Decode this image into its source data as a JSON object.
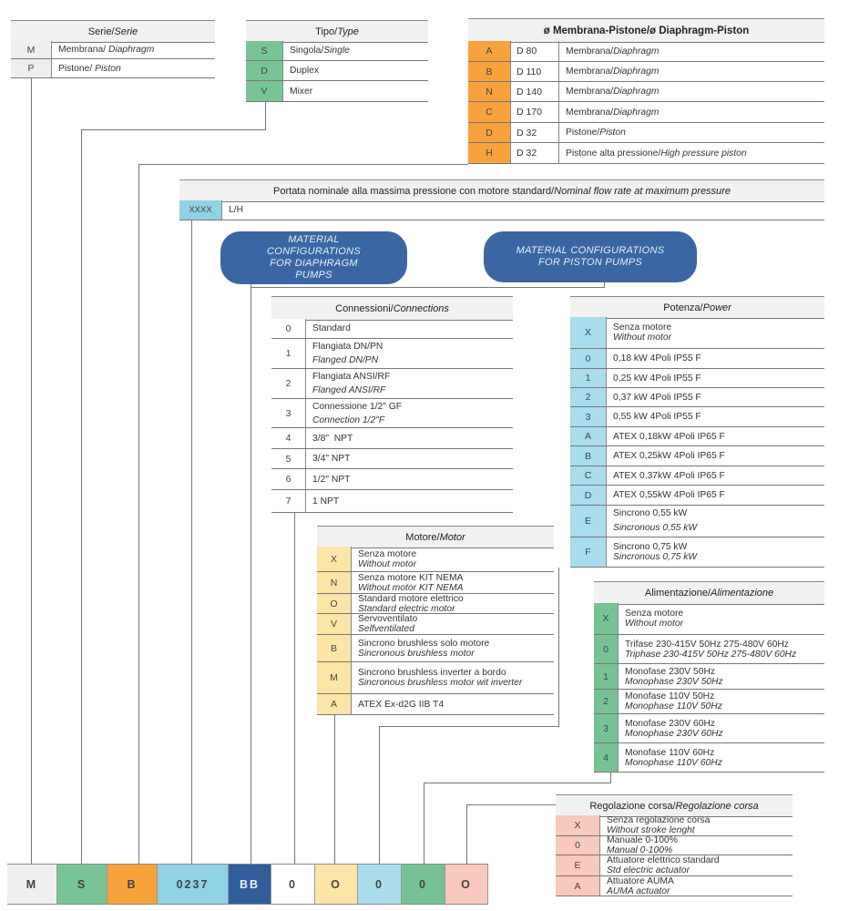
{
  "colors": {
    "header_bg": "#f1f1f1",
    "serie": "#efefef",
    "tipo": "#78c497",
    "diametro": "#f7a23b",
    "portata": "#8fd2e6",
    "config": "#2f5e9b",
    "connessioni": "#ffffff",
    "motore": "#fde5a8",
    "potenza": "#a9dcec",
    "alimentazione": "#76c294",
    "regolazione": "#f8c9bc"
  },
  "tables": {
    "serie": {
      "title": "Serie/",
      "title_en": "Serie",
      "rows": [
        {
          "code": "M",
          "text": "Membrana/ ",
          "en": "Diaphragm"
        },
        {
          "code": "P",
          "text": "Pistone/ ",
          "en": "Piston"
        }
      ]
    },
    "tipo": {
      "title": "Tipo/",
      "title_en": "Type",
      "rows": [
        {
          "code": "S",
          "text": "Singola/",
          "en": "Single"
        },
        {
          "code": "D",
          "text": "Duplex"
        },
        {
          "code": "V",
          "text": "Mixer"
        }
      ]
    },
    "diametro": {
      "title": "ø Membrana-Pistone/ø Diaphragm-Piston",
      "rows": [
        {
          "code": "A",
          "dim": "D 80",
          "text": "Membrana/",
          "en": "Diaphragm"
        },
        {
          "code": "B",
          "dim": "D 110",
          "text": "Membrana/",
          "en": "Diaphragm"
        },
        {
          "code": "N",
          "dim": "D 140",
          "text": "Membrana/",
          "en": "Diaphragm"
        },
        {
          "code": "C",
          "dim": "D 170",
          "text": "Membrana/",
          "en": "Diaphragm"
        },
        {
          "code": "D",
          "dim": "D 32",
          "text": "Pistone/",
          "en": "Piston"
        },
        {
          "code": "H",
          "dim": "D 32",
          "text": "Pistone alta pressione/",
          "en": "High pressure piston"
        }
      ]
    },
    "portata": {
      "title": "Portata nominale alla massima pressione con motore standard/ ",
      "title_en": "Nominal flow rate at maximum pressure",
      "rows": [
        {
          "code": "XXXX",
          "text": "L/H"
        }
      ]
    },
    "connessioni": {
      "title": "Connessioni/",
      "title_en": "Connections",
      "rows": [
        {
          "code": "0",
          "text": "Standard"
        },
        {
          "code": "1",
          "text": "Flangiata DN/PN",
          "en": "Flanged DN/PN"
        },
        {
          "code": "2",
          "text": "Flangiata ANSI/RF",
          "en": "Flanged ANSI/RF"
        },
        {
          "code": "3",
          "text": "Connessione 1/2\" GF",
          "en": "Connection 1/2\"F"
        },
        {
          "code": "4",
          "text": "3/8\"  NPT"
        },
        {
          "code": "5",
          "text": "3/4\" NPT"
        },
        {
          "code": "6",
          "text": "1/2\" NPT"
        },
        {
          "code": "7",
          "text": "1 NPT"
        }
      ]
    },
    "motore": {
      "title": "Motore/",
      "title_en": "Motor",
      "rows": [
        {
          "code": "X",
          "text": "Senza motore",
          "en": "Without motor"
        },
        {
          "code": "N",
          "text": "Senza motore KIT NEMA",
          "en": "Without motor KIT NEMA"
        },
        {
          "code": "O",
          "text": "Standard motore elettrico",
          "en": "Standard electric motor"
        },
        {
          "code": "V",
          "text": "Servoventilato",
          "en": "Selfventilated"
        },
        {
          "code": "B",
          "text": "Sincrono brushless solo motore",
          "en": "Sincronous brushless motor"
        },
        {
          "code": "M",
          "text": "Sincrono brushless inverter a bordo",
          "en": "Sincronous brushless motor wit inverter"
        },
        {
          "code": "A",
          "text": "ATEX Ex-d2G IIB T4"
        }
      ]
    },
    "potenza": {
      "title": "Potenza/",
      "title_en": "Power",
      "rows": [
        {
          "code": "X",
          "text": "Senza motore",
          "en": "Without motor"
        },
        {
          "code": "0",
          "text": "0,18 kW 4Poli IP55 F"
        },
        {
          "code": "1",
          "text": "0,25 kW 4Poli IP55 F"
        },
        {
          "code": "2",
          "text": "0,37 kW 4Poli IP55 F"
        },
        {
          "code": "3",
          "text": "0,55 kW 4Poli IP55 F"
        },
        {
          "code": "A",
          "text": "ATEX 0,18kW 4Poli IP65 F"
        },
        {
          "code": "B",
          "text": "ATEX 0,25kW 4Poli IP65 F"
        },
        {
          "code": "C",
          "text": "ATEX 0,37kW 4Poli IP65 F"
        },
        {
          "code": "D",
          "text": "ATEX 0,55kW 4Poli IP65 F"
        },
        {
          "code": "E",
          "text": "Sincrono 0,55 kW",
          "en": "Sincronous 0,55 kW"
        },
        {
          "code": "F",
          "text": "Sincrono 0,75 kW",
          "en": "Sincronous 0,75 kW"
        }
      ]
    },
    "alimentazione": {
      "title": "Alimentazione/",
      "title_en": "Alimentazione",
      "rows": [
        {
          "code": "X",
          "text": "Senza motore",
          "en": "Without motor"
        },
        {
          "code": "0",
          "text": "Trifase 230-415V 50Hz 275-480V 60Hz",
          "en": "Triphase 230-415V 50Hz 275-480V 60Hz"
        },
        {
          "code": "1",
          "text": "Monofase 230V 50Hz",
          "en": "Monophase 230V 50Hz"
        },
        {
          "code": "2",
          "text": "Monofase 110V 50Hz",
          "en": "Monophase 110V 50Hz"
        },
        {
          "code": "3",
          "text": "Monofase 230V 60Hz",
          "en": "Monophase 230V 60Hz"
        },
        {
          "code": "4",
          "text": "Monofase 110V 60Hz",
          "en": "Monophase 110V 60Hz"
        }
      ]
    },
    "regolazione": {
      "title": "Regolazione corsa/",
      "title_en": "Regolazione corsa",
      "rows": [
        {
          "code": "X",
          "text": "Senza regolazione corsa",
          "en": "Without stroke lenght"
        },
        {
          "code": "0",
          "text": "Manuale 0-100%",
          "en": "Manual 0-100%"
        },
        {
          "code": "E",
          "text": "Attuatore elettrico standard",
          "en": "Std electric actuator"
        },
        {
          "code": "A",
          "text": "Attuatore AUMA",
          "en": "AUMA actuator"
        }
      ]
    }
  },
  "buttons": {
    "diaphragm": "MATERIAL CONFIGURATIONS FOR DIAPHRAGM PUMPS",
    "piston": "MATERIAL CONFIGURATIONS FOR PISTON PUMPS"
  },
  "code_bar": [
    {
      "value": "M",
      "group": "serie"
    },
    {
      "value": "S",
      "group": "tipo"
    },
    {
      "value": "B",
      "group": "diametro"
    },
    {
      "value": "0237",
      "group": "portata"
    },
    {
      "value": "BB",
      "group": "config"
    },
    {
      "value": "0",
      "group": "connessioni"
    },
    {
      "value": "O",
      "group": "motore"
    },
    {
      "value": "0",
      "group": "potenza"
    },
    {
      "value": "0",
      "group": "alimentazione"
    },
    {
      "value": "O",
      "group": "regolazione"
    }
  ]
}
